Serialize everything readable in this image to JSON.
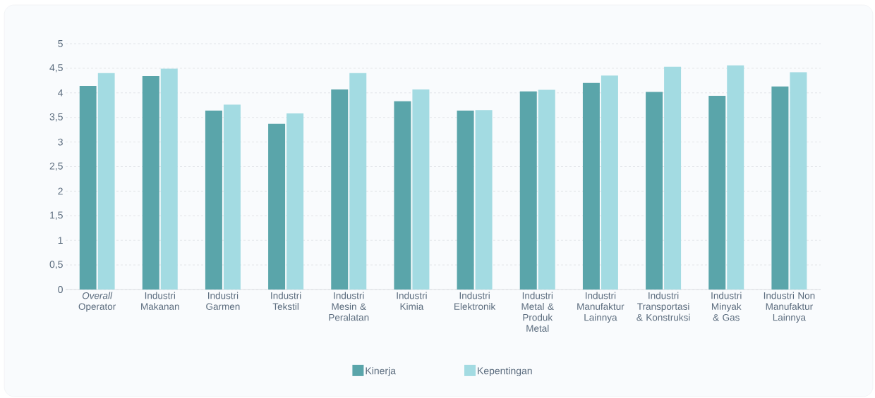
{
  "chart_data": {
    "type": "bar",
    "categories": [
      "*Overall* Operator",
      "Industri Makanan",
      "Industri Garmen",
      "Industri Tekstil",
      "Industri Mesin & Peralatan",
      "Industri Kimia",
      "Industri Elektronik",
      "Industri Metal & Produk Metal",
      "Industri Manufaktur Lainnya",
      "Industri Transportasi & Konstruksi",
      "Industri Minyak & Gas",
      "Industri Non Manufaktur Lainnya"
    ],
    "series": [
      {
        "name": "Kinerja",
        "color": "#5aa5aa",
        "values": [
          4.14,
          4.34,
          3.64,
          3.37,
          4.07,
          3.83,
          3.64,
          4.03,
          4.2,
          4.02,
          3.94,
          4.13
        ]
      },
      {
        "name": "Kepentingan",
        "color": "#a3dbe2",
        "values": [
          4.4,
          4.49,
          3.76,
          3.58,
          4.4,
          4.07,
          3.65,
          4.06,
          4.35,
          4.53,
          4.56,
          4.42
        ]
      }
    ],
    "ylim": [
      0,
      5
    ],
    "yticks": [
      0,
      {
        "value": 0.5,
        "label": "0,5"
      },
      1,
      {
        "value": 1.5,
        "label": "1,5"
      },
      2,
      {
        "value": 2.5,
        "label": "2,5"
      },
      3,
      {
        "value": 3.5,
        "label": "3,5"
      },
      4,
      {
        "value": 4.5,
        "label": "4,5"
      },
      5
    ],
    "grid": "y",
    "legend": "bottom"
  }
}
